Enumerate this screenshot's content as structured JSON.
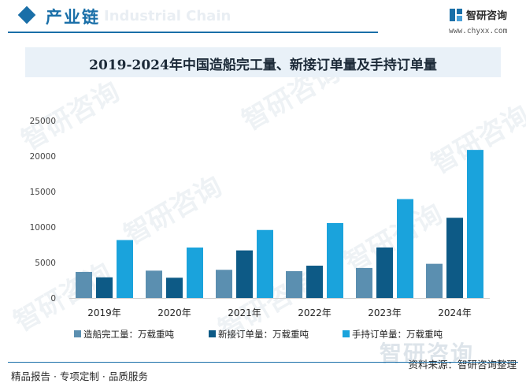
{
  "header": {
    "section_title": "产业链",
    "ghost_text": "Industrial Chain",
    "brand_name": "智研咨询",
    "brand_url": "www.chyxx.com"
  },
  "watermark": {
    "text": "智研咨询",
    "big_brand": "智研咨询"
  },
  "footer": {
    "left": "精品报告 · 专项定制 · 品质服务",
    "right": "资料来源：智研咨询整理"
  },
  "colors": {
    "accent": "#1a6fa8",
    "series": [
      "#5b8fb0",
      "#0d5a86",
      "#1aa3dc"
    ]
  },
  "chart_data": {
    "type": "bar",
    "title": "2019-2024年中国造船完工量、新接订单量及手持订单量",
    "categories": [
      "2019年",
      "2020年",
      "2021年",
      "2022年",
      "2023年",
      "2024年"
    ],
    "series": [
      {
        "name": "造船完工量：万载重吨",
        "values": [
          3672,
          3853,
          3970,
          3786,
          4232,
          4818
        ]
      },
      {
        "name": "新接订单量：万载重吨",
        "values": [
          2907,
          2853,
          6707,
          4552,
          7120,
          11305
        ]
      },
      {
        "name": "手持订单量：万载重吨",
        "values": [
          8166,
          7111,
          9584,
          10557,
          13939,
          20872
        ]
      }
    ],
    "yticks": [
      0,
      5000,
      10000,
      15000,
      20000,
      25000
    ],
    "ylim": [
      0,
      25000
    ],
    "xlabel": "",
    "ylabel": "",
    "legend": "bottom",
    "grid": false
  }
}
